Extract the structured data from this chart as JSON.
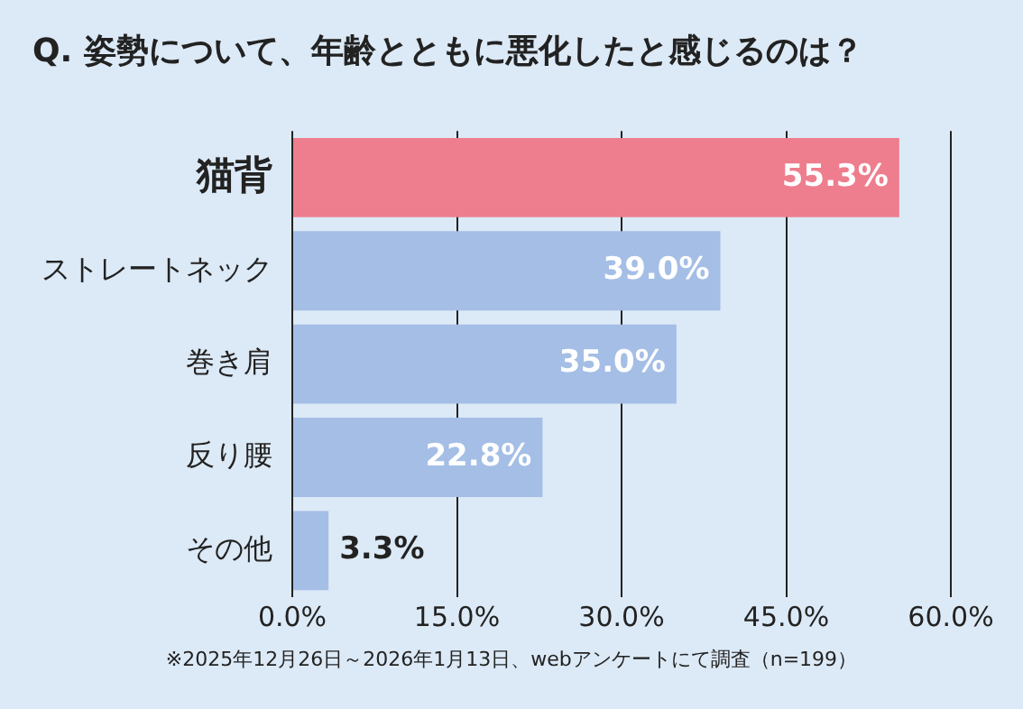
{
  "chart_data": {
    "type": "bar",
    "orientation": "horizontal",
    "title": "Q. 姿勢について、年齢とともに悪化したと感じるのは？",
    "categories": [
      "猫背",
      "ストレートネック",
      "巻き肩",
      "反り腰",
      "その他"
    ],
    "values": [
      55.3,
      39.0,
      35.0,
      22.8,
      3.3
    ],
    "colors": [
      "#ee7d8d",
      "#a4bee6",
      "#a4bee6",
      "#a4bee6",
      "#a4bee6"
    ],
    "value_labels": [
      "55.3%",
      "39.0%",
      "35.0%",
      "22.8%",
      "3.3%"
    ],
    "xlim": [
      0,
      60
    ],
    "xticks": [
      {
        "value": 0,
        "label": "0.0%"
      },
      {
        "value": 15,
        "label": "15.0%"
      },
      {
        "value": 30,
        "label": "30.0%"
      },
      {
        "value": 45,
        "label": "45.0%"
      },
      {
        "value": 60,
        "label": "60.0%"
      }
    ],
    "grid": "x",
    "annotations": [
      "※2025年12月26日～2026年1月13日、webアンケートにて調査（n=199）"
    ]
  }
}
